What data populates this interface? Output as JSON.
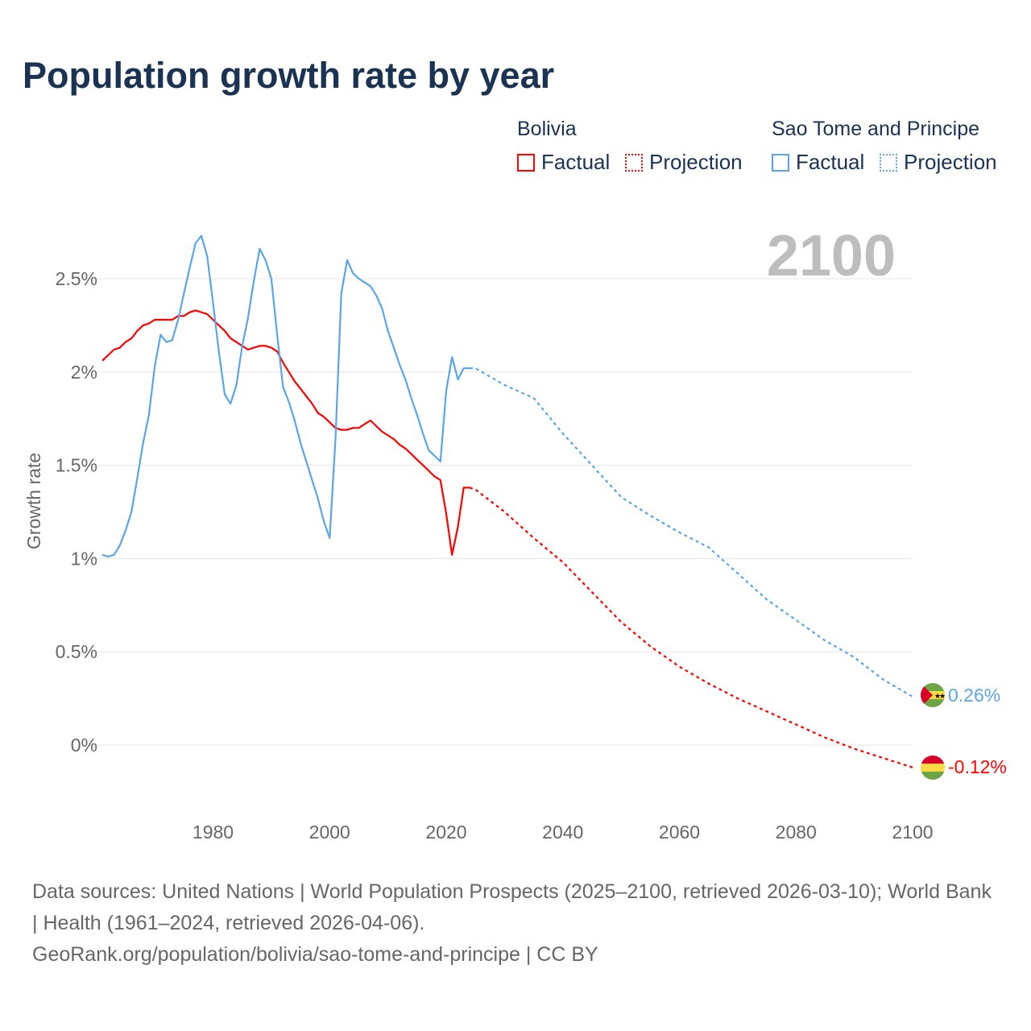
{
  "title": "Population growth rate by year",
  "legend": {
    "groups": [
      {
        "name": "Bolivia",
        "factual": "Factual",
        "projection": "Projection",
        "color": "#ff0000"
      },
      {
        "name": "Sao Tome and Principe",
        "factual": "Factual",
        "projection": "Projection",
        "color": "#5aa5e8"
      }
    ]
  },
  "year_label": "2100",
  "end_labels": {
    "bolivia": "-0.12%",
    "stp": "0.26%"
  },
  "footer": {
    "sources": "Data sources: United Nations | World Population Prospects (2025–2100, retrieved 2026-03-10); World Bank | Health (1961–2024, retrieved 2026-04-06).",
    "link": "GeoRank.org/population/bolivia/sao-tome-and-principe | CC BY"
  },
  "chart_data": {
    "type": "line",
    "title": "Population growth rate by year",
    "xlabel": "",
    "ylabel": "Growth rate",
    "xlim": [
      1961,
      2100
    ],
    "ylim": [
      -0.3,
      2.8
    ],
    "xticks": [
      1980,
      2000,
      2020,
      2040,
      2060,
      2080,
      2100
    ],
    "xtick_labels": [
      "1980",
      "2000",
      "2020",
      "2040",
      "2060",
      "2080",
      "2100"
    ],
    "yticks": [
      0,
      0.5,
      1,
      1.5,
      2,
      2.5
    ],
    "ytick_labels": [
      "0%",
      "0.5%",
      "1%",
      "1.5%",
      "2%",
      "2.5%"
    ],
    "grid": true,
    "legend_position": "top-right",
    "series": [
      {
        "name": "Bolivia Factual",
        "style": "solid",
        "color": "#ff0000",
        "x": [
          1961,
          1962,
          1963,
          1964,
          1965,
          1966,
          1967,
          1968,
          1969,
          1970,
          1971,
          1972,
          1973,
          1974,
          1975,
          1976,
          1977,
          1978,
          1979,
          1980,
          1981,
          1982,
          1983,
          1984,
          1985,
          1986,
          1987,
          1988,
          1989,
          1990,
          1991,
          1992,
          1993,
          1994,
          1995,
          1996,
          1997,
          1998,
          1999,
          2000,
          2001,
          2002,
          2003,
          2004,
          2005,
          2006,
          2007,
          2008,
          2009,
          2010,
          2011,
          2012,
          2013,
          2014,
          2015,
          2016,
          2017,
          2018,
          2019,
          2020,
          2021,
          2022,
          2023,
          2024
        ],
        "y": [
          2.06,
          2.09,
          2.12,
          2.13,
          2.16,
          2.18,
          2.22,
          2.25,
          2.26,
          2.28,
          2.28,
          2.28,
          2.28,
          2.3,
          2.3,
          2.32,
          2.33,
          2.32,
          2.31,
          2.28,
          2.25,
          2.22,
          2.18,
          2.16,
          2.14,
          2.12,
          2.13,
          2.14,
          2.14,
          2.13,
          2.11,
          2.05,
          2.0,
          1.95,
          1.91,
          1.87,
          1.83,
          1.78,
          1.76,
          1.73,
          1.7,
          1.69,
          1.69,
          1.7,
          1.7,
          1.72,
          1.74,
          1.71,
          1.68,
          1.66,
          1.64,
          1.61,
          1.59,
          1.56,
          1.53,
          1.5,
          1.47,
          1.44,
          1.42,
          1.24,
          1.02,
          1.17,
          1.38,
          1.38
        ]
      },
      {
        "name": "Bolivia Projection",
        "style": "dotted",
        "color": "#ff0000",
        "x": [
          2024,
          2025,
          2030,
          2035,
          2040,
          2045,
          2050,
          2055,
          2060,
          2065,
          2070,
          2075,
          2080,
          2085,
          2090,
          2095,
          2100
        ],
        "y": [
          1.38,
          1.37,
          1.25,
          1.11,
          0.98,
          0.82,
          0.66,
          0.53,
          0.42,
          0.33,
          0.25,
          0.18,
          0.11,
          0.04,
          -0.02,
          -0.07,
          -0.12
        ]
      },
      {
        "name": "Sao Tome and Principe Factual",
        "style": "solid",
        "color": "#5aa5e8",
        "x": [
          1961,
          1962,
          1963,
          1964,
          1965,
          1966,
          1967,
          1968,
          1969,
          1970,
          1971,
          1972,
          1973,
          1974,
          1975,
          1976,
          1977,
          1978,
          1979,
          1980,
          1981,
          1982,
          1983,
          1984,
          1985,
          1986,
          1987,
          1988,
          1989,
          1990,
          1991,
          1992,
          1993,
          1994,
          1995,
          1996,
          1997,
          1998,
          1999,
          2000,
          2001,
          2002,
          2003,
          2004,
          2005,
          2006,
          2007,
          2008,
          2009,
          2010,
          2011,
          2012,
          2013,
          2014,
          2015,
          2016,
          2017,
          2018,
          2019,
          2020,
          2021,
          2022,
          2023,
          2024
        ],
        "y": [
          1.02,
          1.01,
          1.02,
          1.07,
          1.15,
          1.25,
          1.43,
          1.62,
          1.77,
          2.03,
          2.2,
          2.16,
          2.17,
          2.28,
          2.42,
          2.56,
          2.69,
          2.73,
          2.62,
          2.37,
          2.11,
          1.88,
          1.83,
          1.93,
          2.14,
          2.29,
          2.49,
          2.66,
          2.6,
          2.5,
          2.2,
          1.92,
          1.84,
          1.74,
          1.62,
          1.52,
          1.42,
          1.32,
          1.2,
          1.11,
          1.64,
          2.42,
          2.6,
          2.53,
          2.5,
          2.48,
          2.46,
          2.41,
          2.34,
          2.22,
          2.13,
          2.04,
          1.96,
          1.86,
          1.77,
          1.67,
          1.58,
          1.55,
          1.52,
          1.9,
          2.08,
          1.96,
          2.02,
          2.02
        ]
      },
      {
        "name": "Sao Tome and Principe Projection",
        "style": "dotted",
        "color": "#5aa5e8",
        "x": [
          2024,
          2025,
          2030,
          2035,
          2040,
          2045,
          2050,
          2055,
          2060,
          2065,
          2070,
          2075,
          2080,
          2085,
          2090,
          2095,
          2100
        ],
        "y": [
          2.02,
          2.02,
          1.93,
          1.86,
          1.67,
          1.5,
          1.33,
          1.23,
          1.14,
          1.06,
          0.92,
          0.78,
          0.67,
          0.56,
          0.47,
          0.35,
          0.26
        ]
      }
    ]
  }
}
